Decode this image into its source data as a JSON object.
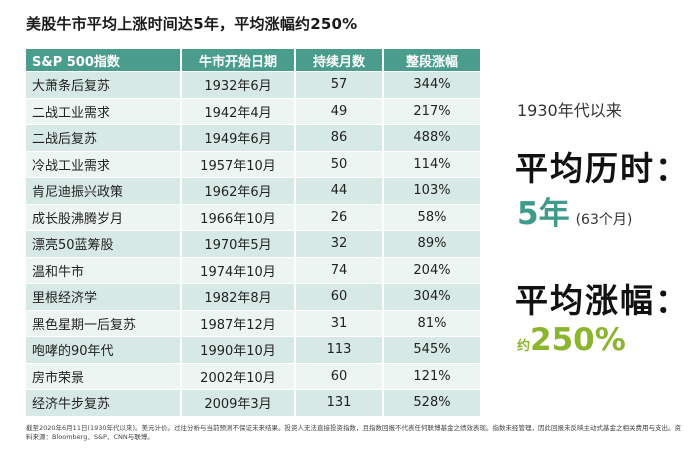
{
  "title": "美股牛市平均上涨时间达5年，平均涨幅约250%",
  "table": {
    "headers": [
      "S&P 500指数",
      "牛市开始日期",
      "持续月数",
      "整段涨幅"
    ],
    "rows": [
      [
        "大萧条后复苏",
        "1932年6月",
        "57",
        "344%"
      ],
      [
        "二战工业需求",
        "1942年4月",
        "49",
        "217%"
      ],
      [
        "二战后复苏",
        "1949年6月",
        "86",
        "488%"
      ],
      [
        "冷战工业需求",
        "1957年10月",
        "50",
        "114%"
      ],
      [
        "肯尼迪振兴政策",
        "1962年6月",
        "44",
        "103%"
      ],
      [
        "成长股沸腾岁月",
        "1966年10月",
        "26",
        "58%"
      ],
      [
        "漂亮50蓝筹股",
        "1970年5月",
        "32",
        "89%"
      ],
      [
        "温和牛市",
        "1974年10月",
        "74",
        "204%"
      ],
      [
        "里根经济学",
        "1982年8月",
        "60",
        "304%"
      ],
      [
        "黑色星期一后复苏",
        "1987年12月",
        "31",
        "81%"
      ],
      [
        "咆哮的90年代",
        "1990年10月",
        "113",
        "545%"
      ],
      [
        "房市荣景",
        "2002年10月",
        "60",
        "121%"
      ],
      [
        "经济牛步复苏",
        "2009年3月",
        "131",
        "528%"
      ]
    ]
  },
  "side": {
    "subtitle": "1930年代以来",
    "avg_duration_label": "平均历时：",
    "avg_duration_value": "5年",
    "avg_duration_note": "(63个月)",
    "avg_gain_label": "平均涨幅：",
    "avg_gain_prefix": "约",
    "avg_gain_value": "250%"
  },
  "footnote": "截至2020年6月11日(1930年代以來)。美元计价。过往分析与当前预测不保证未来结果。投资人无法直接投资指数，且指数回报不代表任何联博基金之绩效表现。指数未经管理，因此回报未反映主动式基金之相关费用与支出。资料来源：Bloomberg、S&P、CNN与联博。",
  "colors": {
    "header_bg": "#4a9c8c",
    "row_odd": "#d7e9e5",
    "row_even": "#edf5f3",
    "accent_teal": "#3f9a8a",
    "accent_green": "#8bb52e"
  }
}
